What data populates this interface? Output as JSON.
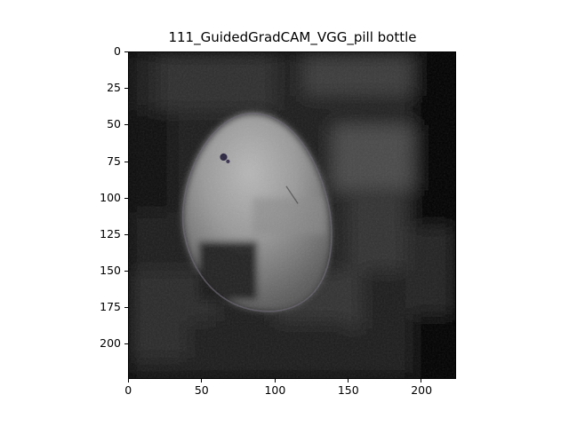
{
  "title": "111_GuidedGradCAM_VGG_pill bottle",
  "image": {
    "description_icon": "heatmap-image",
    "size": [
      224,
      224
    ],
    "colormap": "grayscale overlay"
  },
  "axes": {
    "x_ticks": [
      0,
      50,
      100,
      150,
      200
    ],
    "y_ticks": [
      0,
      25,
      50,
      75,
      100,
      125,
      150,
      175,
      200
    ],
    "x_range": [
      0,
      224
    ],
    "y_range": [
      0,
      224
    ],
    "y_inverted": true
  }
}
